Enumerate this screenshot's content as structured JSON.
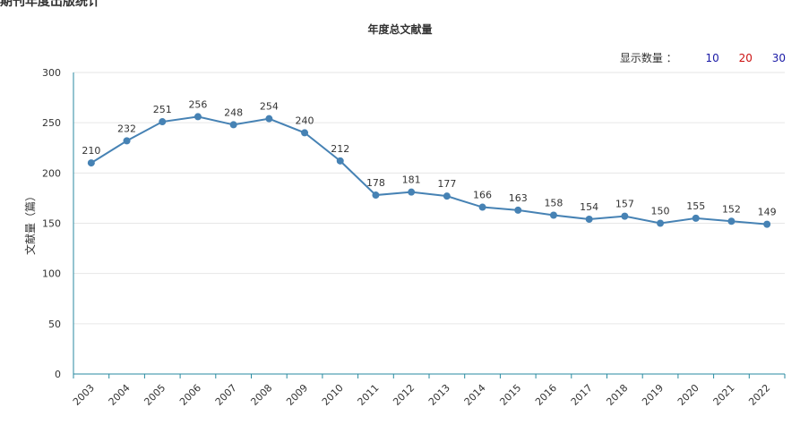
{
  "page": {
    "heading": "期刊年度出版统计"
  },
  "controls": {
    "label": "显示数量 ：",
    "options": [
      {
        "label": "10",
        "color": "#1a1aa6"
      },
      {
        "label": "20",
        "color": "#cc1111"
      },
      {
        "label": "30",
        "color": "#1a1aa6"
      }
    ]
  },
  "chart_data": {
    "type": "line",
    "title": "年度总文献量",
    "xlabel": "",
    "ylabel": "文献量（篇）",
    "ylim": [
      0,
      300
    ],
    "yticks": [
      0,
      50,
      100,
      150,
      200,
      250,
      300
    ],
    "grid": true,
    "line_color": "#4682b4",
    "categories": [
      "2003",
      "2004",
      "2005",
      "2006",
      "2007",
      "2008",
      "2009",
      "2010",
      "2011",
      "2012",
      "2013",
      "2014",
      "2015",
      "2016",
      "2017",
      "2018",
      "2019",
      "2020",
      "2021",
      "2022"
    ],
    "values": [
      210,
      232,
      251,
      256,
      248,
      254,
      240,
      212,
      178,
      181,
      177,
      166,
      163,
      158,
      154,
      157,
      150,
      155,
      152,
      149
    ]
  }
}
